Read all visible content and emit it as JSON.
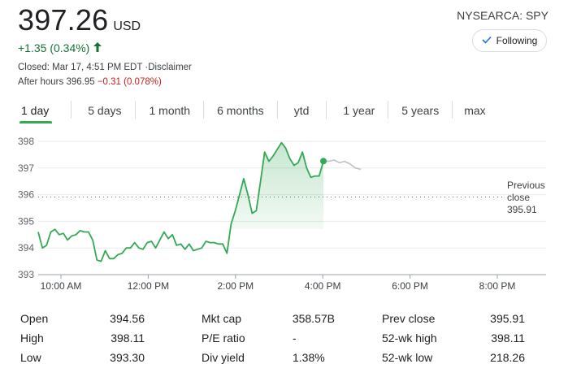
{
  "quote": {
    "price": "397.26",
    "currency": "USD",
    "ticker": "NYSEARCA: SPY",
    "follow_label": "Following",
    "change": "+1.35 (0.34%)",
    "closed_text": "Closed: Mar 17, 4:51 PM EDT ·",
    "disclaimer": "Disclaimer",
    "after_hours_label": "After hours 396.95",
    "after_hours_change": "−0.31 (0.078%)",
    "colors": {
      "up": "#137333",
      "down": "#c5221f",
      "line": "#34a853"
    }
  },
  "tabs": [
    {
      "label": "1 day",
      "active": true
    },
    {
      "label": "5 days"
    },
    {
      "label": "1 month"
    },
    {
      "label": "6 months"
    },
    {
      "label": "ytd"
    },
    {
      "label": "1 year"
    },
    {
      "label": "5 years"
    },
    {
      "label": "max"
    }
  ],
  "chart_data": {
    "type": "line",
    "ylim": [
      393,
      398.2
    ],
    "yticks": [
      "398",
      "397",
      "396",
      "395",
      "394",
      "393"
    ],
    "xticks": [
      "10:00 AM",
      "12:00 PM",
      "2:00 PM",
      "4:00 PM",
      "6:00 PM",
      "8:00 PM"
    ],
    "previous_close_label": [
      "Previous",
      "close",
      "395.91"
    ],
    "previous_close": 395.91,
    "series": [
      {
        "values": [
          394.6,
          394.0,
          394.1,
          394.6,
          394.7,
          394.5,
          394.55,
          394.3,
          394.45,
          394.5,
          394.65,
          394.6,
          394.6,
          394.3,
          393.55,
          393.5,
          393.9,
          393.6,
          393.6,
          393.75,
          393.8,
          394.0,
          394.0,
          394.2,
          394.0,
          393.95,
          394.2,
          394.25,
          394.0,
          394.3,
          394.6,
          394.35,
          394.5,
          394.1,
          394.15,
          393.95,
          394.15,
          393.9,
          393.95,
          394.0,
          394.25,
          394.2,
          394.2,
          394.15,
          394.15,
          393.8,
          394.9,
          395.4,
          396.0,
          396.6,
          396.0,
          395.3,
          395.4,
          396.5,
          397.6,
          397.25,
          397.45,
          397.7,
          397.95,
          397.75,
          397.35,
          397.1,
          397.2,
          397.6,
          397.0,
          396.65,
          396.7,
          396.7,
          397.26
        ]
      },
      {
        "values": [
          397.26,
          397.25,
          397.3,
          397.2,
          397.25,
          397.15,
          397.0,
          396.95
        ]
      }
    ]
  },
  "stats": {
    "col1": [
      {
        "label": "Open",
        "value": "394.56"
      },
      {
        "label": "High",
        "value": "398.11"
      },
      {
        "label": "Low",
        "value": "393.30"
      }
    ],
    "col2": [
      {
        "label": "Mkt cap",
        "value": "358.57B"
      },
      {
        "label": "P/E ratio",
        "value": "-"
      },
      {
        "label": "Div yield",
        "value": "1.38%"
      }
    ],
    "col3": [
      {
        "label": "Prev close",
        "value": "395.91"
      },
      {
        "label": "52-wk high",
        "value": "398.11"
      },
      {
        "label": "52-wk low",
        "value": "218.26"
      }
    ]
  }
}
